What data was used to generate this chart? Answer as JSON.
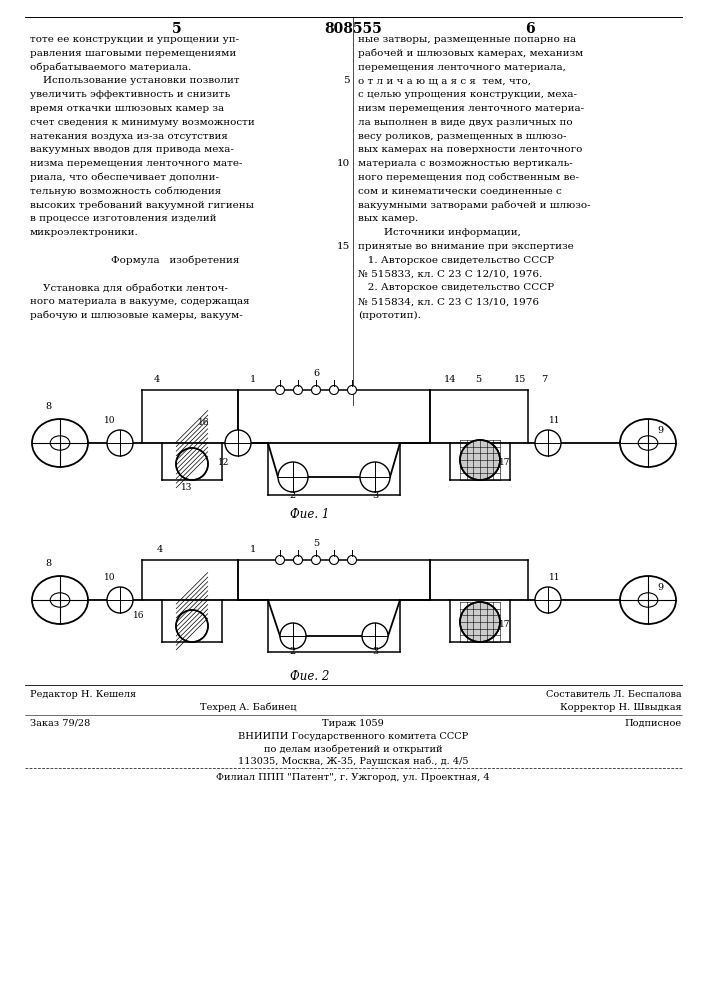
{
  "page_number_left": "5",
  "page_number_center": "808555",
  "page_number_right": "6",
  "col_left_text": [
    "тоте ее конструкции и упрощении уп-",
    "равления шаговыми перемещениями",
    "обрабатываемого материала.",
    "    Использование установки позволит",
    "увеличить эффективность и снизить",
    "время откачки шлюзовых камер за",
    "счет сведения к минимуму возможности",
    "натекания воздуха из-за отсутствия",
    "вакуумных вводов для привода меха-",
    "низма перемещения ленточного мате-",
    "риала, что обеспечивает дополни-",
    "тельную возможность соблюдения",
    "высоких требований вакуумной гигиены",
    "в процессе изготовления изделий",
    "микроэлектроники.",
    "",
    "      Формула   изобретения",
    "",
    "    Установка для обработки ленточ-",
    "ного материала в вакууме, содержащая",
    "рабочую и шлюзовые камеры, вакуум-"
  ],
  "col_right_text": [
    "ные затворы, размещенные попарно на",
    "рабочей и шлюзовых камерах, механизм",
    "перемещения ленточного материала,",
    "о т л и ч а ю щ а я с я  тем, что,",
    "с целью упрощения конструкции, меха-",
    "низм перемещения ленточного материа-",
    "ла выполнен в виде двух различных по",
    "весу роликов, размещенных в шлюзо-",
    "вых камерах на поверхности ленточного",
    "материала с возможностью вертикаль-",
    "ного перемещения под собственным ве-",
    "сом и кинематически соединенные с",
    "вакуумными затворами рабочей и шлюзо-",
    "вых камер.",
    "        Источники информации,",
    "принятые во внимание при экспертизе",
    "   1. Авторское свидетельство СССР",
    "№ 515833, кл. С 23 С 12/10, 1976.",
    "   2. Авторское свидетельство СССР",
    "№ 515834, кл. С 23 С 13/10, 1976",
    "(прототип)."
  ],
  "line_number_rows": {
    "3": "5",
    "9": "10",
    "15": "15"
  },
  "fig1_caption": "Фие. 1",
  "fig2_caption": "Фие. 2",
  "footer_editor": "Редактор Н. Кешеля",
  "footer_composer": "Составитель Л. Беспалова",
  "footer_techred": "Техред А. Бабинец",
  "footer_corrector": "Корректор Н. Швыдкая",
  "footer_order": "Заказ 79/28",
  "footer_print": "Тираж 1059",
  "footer_sub": "Подписное",
  "footer_org1": "ВНИИПИ Государственного комитета СССР",
  "footer_org2": "по делам изобретений и открытий",
  "footer_addr": "113035, Москва, Ж-35, Раушская наб., д. 4/5",
  "footer_branch": "Филиал ППП \"Патент\", г. Ужгород, ул. Проектная, 4",
  "bg_color": "#ffffff",
  "text_color": "#000000",
  "diagram_color": "#000000"
}
